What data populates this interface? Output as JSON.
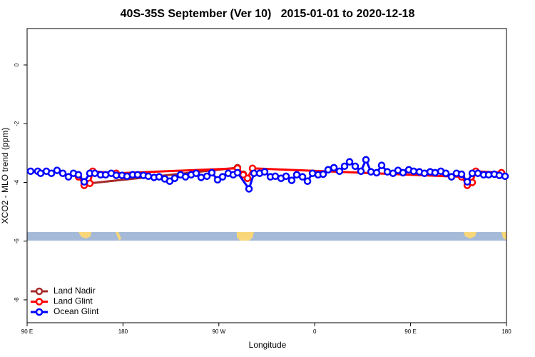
{
  "chart_data": {
    "type": "line",
    "title": "40S-35S September (Ver 10)   2015-01-01 to 2020-12-18",
    "xlabel": "Longitude",
    "ylabel": "XCO2 - MLO trend (ppm)",
    "xlim": [
      90,
      540
    ],
    "xticks": [
      {
        "value": 90,
        "label": "90 E"
      },
      {
        "value": 180,
        "label": "180"
      },
      {
        "value": 270,
        "label": "90 W"
      },
      {
        "value": 360,
        "label": "0"
      },
      {
        "value": 450,
        "label": "90 E"
      },
      {
        "value": 540,
        "label": "180"
      }
    ],
    "ylim": [
      -8.78,
      1.24
    ],
    "yticks": [
      0,
      -2,
      -4,
      -6,
      -8
    ],
    "legend": "bottomleft",
    "series": [
      {
        "name": "Land Nadir",
        "color": "#a52a2a",
        "x": [
          143.6,
          287.5,
          292.9
        ],
        "values": [
          -4.05,
          -3.5,
          -3.72
        ]
      },
      {
        "name": "Land Glint",
        "color": "#ff0000",
        "x": [
          138.2,
          143.6,
          148.9,
          151.6,
          173.7,
          287.5,
          292.9,
          296.9,
          301.6,
          497.8,
          503.2,
          507.9,
          511.2,
          535.3
        ],
        "values": [
          -3.81,
          -4.1,
          -4.03,
          -3.62,
          -3.69,
          -3.52,
          -3.74,
          -3.86,
          -3.52,
          -3.81,
          -4.1,
          -4.0,
          -3.62,
          -3.67
        ]
      },
      {
        "name": "Ocean Glint",
        "color": "#0000ff",
        "x": [
          93.3,
          100,
          102.7,
          108.1,
          112.8,
          118.1,
          123.5,
          128.8,
          133.5,
          138.2,
          143.6,
          148.9,
          153.6,
          159,
          163.7,
          169,
          173.7,
          179.1,
          183.8,
          189.1,
          193.8,
          199.2,
          203.8,
          209.2,
          213.9,
          219.2,
          223.9,
          228.6,
          234,
          238.7,
          244,
          248.7,
          253.4,
          258.8,
          263.4,
          268.8,
          273.5,
          278.8,
          283.5,
          287.5,
          298.3,
          303,
          308.3,
          313,
          318.4,
          323,
          328.4,
          333.1,
          338.4,
          343.1,
          348.5,
          353.2,
          357.9,
          363.2,
          367.9,
          372.6,
          378,
          383.3,
          388,
          392.7,
          398,
          403.4,
          408.1,
          412.8,
          418.1,
          422.8,
          428.2,
          433.5,
          438.2,
          442.9,
          448.3,
          452.9,
          458.3,
          463,
          468.4,
          473,
          478.4,
          483.1,
          488.4,
          493.1,
          497.8,
          503.2,
          507.9,
          513.2,
          518.6,
          523.3,
          528.6,
          533.3,
          538.7
        ],
        "values": [
          -3.62,
          -3.62,
          -3.69,
          -3.62,
          -3.69,
          -3.59,
          -3.69,
          -3.81,
          -3.69,
          -3.74,
          -3.98,
          -3.69,
          -3.69,
          -3.74,
          -3.74,
          -3.69,
          -3.76,
          -3.76,
          -3.79,
          -3.74,
          -3.74,
          -3.76,
          -3.79,
          -3.83,
          -3.81,
          -3.88,
          -3.96,
          -3.86,
          -3.74,
          -3.81,
          -3.74,
          -3.69,
          -3.83,
          -3.79,
          -3.67,
          -3.91,
          -3.81,
          -3.69,
          -3.74,
          -3.67,
          -4.22,
          -3.69,
          -3.69,
          -3.64,
          -3.81,
          -3.79,
          -3.86,
          -3.79,
          -3.93,
          -3.74,
          -3.81,
          -3.96,
          -3.69,
          -3.74,
          -3.72,
          -3.57,
          -3.5,
          -3.62,
          -3.45,
          -3.3,
          -3.45,
          -3.62,
          -3.23,
          -3.64,
          -3.67,
          -3.42,
          -3.64,
          -3.69,
          -3.59,
          -3.67,
          -3.57,
          -3.62,
          -3.64,
          -3.69,
          -3.64,
          -3.67,
          -3.62,
          -3.69,
          -3.81,
          -3.69,
          -3.72,
          -3.98,
          -3.69,
          -3.69,
          -3.74,
          -3.74,
          -3.72,
          -3.76,
          -3.79
        ]
      }
    ]
  }
}
